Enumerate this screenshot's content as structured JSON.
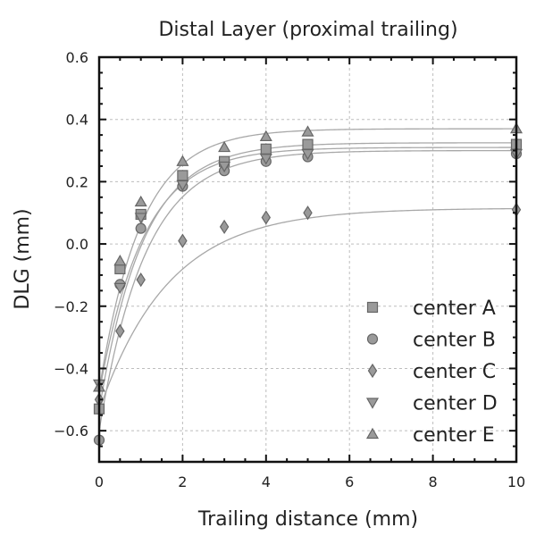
{
  "chart_data": {
    "type": "scatter",
    "title": "Distal Layer (proximal trailing)",
    "xlabel": "Trailing distance (mm)",
    "ylabel": "DLG (mm)",
    "xlim": [
      0,
      10
    ],
    "ylim": [
      -0.7,
      0.6
    ],
    "xticks": [
      0,
      2,
      4,
      6,
      8,
      10
    ],
    "yticks": [
      -0.6,
      -0.4,
      -0.2,
      0.0,
      0.2,
      0.4,
      0.6
    ],
    "xtick_labels": [
      "0",
      "2",
      "4",
      "6",
      "8",
      "10"
    ],
    "ytick_labels": [
      "−0.6",
      "−0.4",
      "−0.2",
      "0.0",
      "0.2",
      "0.4",
      "0.6"
    ],
    "grid": true,
    "legend_position": "lower-right",
    "series": [
      {
        "name": "center A",
        "marker": "square",
        "x": [
          0,
          0.5,
          1,
          2,
          3,
          4,
          5,
          10
        ],
        "y": [
          -0.53,
          -0.08,
          0.095,
          0.22,
          0.265,
          0.305,
          0.32,
          0.32
        ],
        "fit": {
          "a": 0.325,
          "b": 0.86,
          "k": 0.95
        }
      },
      {
        "name": "center B",
        "marker": "circle",
        "x": [
          0,
          0.5,
          1,
          2,
          3,
          4,
          5,
          10
        ],
        "y": [
          -0.63,
          -0.13,
          0.05,
          0.185,
          0.235,
          0.265,
          0.28,
          0.29
        ],
        "fit": {
          "a": 0.3,
          "b": 0.9,
          "k": 0.9
        }
      },
      {
        "name": "center C",
        "marker": "diamond",
        "x": [
          0,
          0.5,
          1,
          2,
          3,
          4,
          5,
          10
        ],
        "y": [
          -0.5,
          -0.28,
          -0.115,
          0.01,
          0.055,
          0.085,
          0.1,
          0.11
        ],
        "fit": {
          "a": 0.115,
          "b": 0.65,
          "k": 0.6
        }
      },
      {
        "name": "center D",
        "marker": "triangle-down",
        "x": [
          0,
          0.5,
          1,
          2,
          3,
          4,
          5,
          10
        ],
        "y": [
          -0.45,
          -0.14,
          0.085,
          0.19,
          0.25,
          0.275,
          0.29,
          0.29
        ],
        "fit": {
          "a": 0.31,
          "b": 0.79,
          "k": 0.95
        }
      },
      {
        "name": "center E",
        "marker": "triangle-up",
        "x": [
          0,
          0.5,
          1,
          2,
          3,
          4,
          5,
          10
        ],
        "y": [
          -0.46,
          -0.055,
          0.135,
          0.265,
          0.31,
          0.345,
          0.36,
          0.37
        ],
        "fit": {
          "a": 0.37,
          "b": 0.84,
          "k": 1.0
        }
      }
    ]
  }
}
